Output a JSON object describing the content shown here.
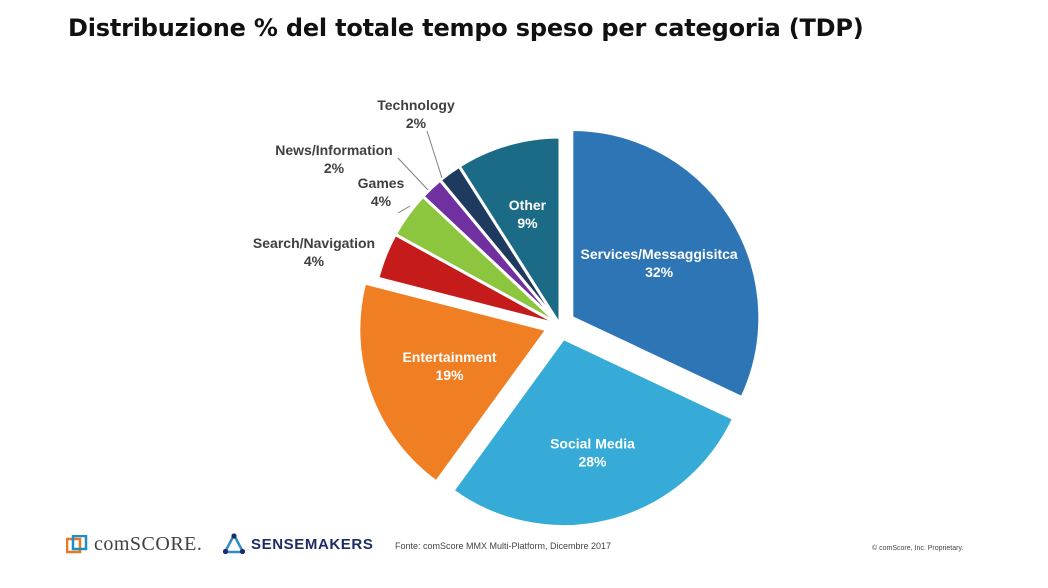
{
  "chart_data": {
    "type": "pie",
    "title": "Distribuzione % del totale tempo speso per categoria (TDP)",
    "slices": [
      {
        "label": "Services/Messaggisitca",
        "value": 32,
        "value_label": "32%",
        "color": "#2e75b6",
        "text_color": "#ffffff",
        "label_position": "inside",
        "exploded": true
      },
      {
        "label": "Social Media",
        "value": 28,
        "value_label": "28%",
        "color": "#36abd8",
        "text_color": "#ffffff",
        "label_position": "inside",
        "exploded": true
      },
      {
        "label": "Entertainment",
        "value": 19,
        "value_label": "19%",
        "color": "#f07e22",
        "text_color": "#ffffff",
        "label_position": "inside",
        "exploded": true
      },
      {
        "label": "Search/Navigation",
        "value": 4,
        "value_label": "4%",
        "color": "#c51b1b",
        "text_color": "#404040",
        "label_position": "outside",
        "exploded": false
      },
      {
        "label": "Games",
        "value": 4,
        "value_label": "4%",
        "color": "#8cc63f",
        "text_color": "#404040",
        "label_position": "outside",
        "exploded": false
      },
      {
        "label": "News/Information",
        "value": 2,
        "value_label": "2%",
        "color": "#7030a0",
        "text_color": "#404040",
        "label_position": "outside",
        "exploded": false
      },
      {
        "label": "Technology",
        "value": 2,
        "value_label": "2%",
        "color": "#1f3a5f",
        "text_color": "#404040",
        "label_position": "outside",
        "exploded": false
      },
      {
        "label": "Other",
        "value": 9,
        "value_label": "9%",
        "color": "#1b6a86",
        "text_color": "#ffffff",
        "label_position": "inside",
        "exploded": false
      }
    ],
    "legend": "none"
  },
  "footer": {
    "comscore_logo": "comSCORE.",
    "sensemakers_logo": "SENSEMAKERS",
    "source": "Fonte: comScore MMX Multi-Platform, Dicembre 2017",
    "proprietary": "© comScore, Inc. Proprietary."
  }
}
